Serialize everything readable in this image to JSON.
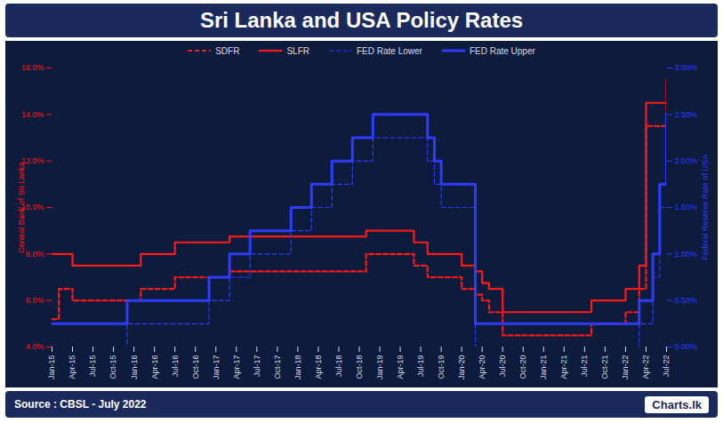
{
  "chart_data": {
    "type": "line",
    "title": "Sri Lanka and USA Policy Rates",
    "ylabel": "Central Bank of Sri Lanka",
    "y2label": "Federal Reserve Rate of USA",
    "source": "Source : CBSL - July 2022",
    "logo": "Charts.lk",
    "grid": false,
    "categories": [
      "Jan-15",
      null,
      null,
      "Apr-15",
      null,
      null,
      "Jul-15",
      null,
      null,
      "Oct-15",
      null,
      null,
      "Jan-16",
      null,
      null,
      "Apr-16",
      null,
      null,
      "Jul-16",
      null,
      null,
      "Oct-16",
      null,
      null,
      "Jan-17",
      null,
      null,
      "Apr-17",
      null,
      null,
      "Jul-17",
      null,
      null,
      "Oct-17",
      null,
      null,
      "Jan-18",
      null,
      null,
      "Apr-18",
      null,
      null,
      "Jul-18",
      null,
      null,
      "Oct-18",
      null,
      null,
      "Jan-19",
      null,
      null,
      "Apr-19",
      null,
      null,
      "Jul-19",
      null,
      null,
      "Oct-19",
      null,
      null,
      "Jan-20",
      null,
      null,
      "Apr-20",
      null,
      null,
      "Jul-20",
      null,
      null,
      "Oct-20",
      null,
      null,
      "Jan-21",
      null,
      null,
      "Apr-21",
      null,
      null,
      "Jul-21",
      null,
      null,
      "Oct-21",
      null,
      null,
      "Jan-22",
      null,
      null,
      "Apr-22",
      null,
      null,
      "Jul-22"
    ],
    "ylim": [
      4,
      16
    ],
    "yticks": [
      {
        "value": 4,
        "label": "4.0%"
      },
      {
        "value": 6,
        "label": "6.0%"
      },
      {
        "value": 8,
        "label": "8.0%"
      },
      {
        "value": 10,
        "label": "10.0%"
      },
      {
        "value": 12,
        "label": "12.0%"
      },
      {
        "value": 14,
        "label": "14.0%"
      },
      {
        "value": 16,
        "label": "16.0%"
      }
    ],
    "y2lim": [
      0,
      3
    ],
    "y2ticks": [
      {
        "value": 0,
        "label": "0.00%"
      },
      {
        "value": 0.5,
        "label": "0.50%"
      },
      {
        "value": 1,
        "label": "1.00%"
      },
      {
        "value": 1.5,
        "label": "1.50%"
      },
      {
        "value": 2,
        "label": "2.00%"
      },
      {
        "value": 2.5,
        "label": "2.50%"
      },
      {
        "value": 3,
        "label": "3.00%"
      }
    ],
    "series": [
      {
        "name": "SDFR",
        "color": "#ff1a1a",
        "line_style": "dashed",
        "values": [
          5.2,
          6.5,
          6.5,
          6,
          6,
          6,
          6,
          6,
          6,
          6,
          6,
          6,
          6,
          6.5,
          6.5,
          6.5,
          6.5,
          6.5,
          7,
          7,
          7,
          7,
          7,
          7,
          7,
          7,
          7.25,
          7.25,
          7.25,
          7.25,
          7.25,
          7.25,
          7.25,
          7.25,
          7.25,
          7.25,
          7.25,
          7.25,
          7.25,
          7.25,
          7.25,
          7.25,
          7.25,
          7.25,
          7.25,
          7.25,
          8,
          8,
          8,
          8,
          8,
          8,
          8,
          7.5,
          7.5,
          7,
          7,
          7,
          7,
          7,
          6.5,
          6.5,
          6.25,
          6,
          5.5,
          5.5,
          4.5,
          4.5,
          4.5,
          4.5,
          4.5,
          4.5,
          4.5,
          4.5,
          4.5,
          4.5,
          4.5,
          4.5,
          4.5,
          5,
          5,
          5,
          5,
          5,
          5.5,
          5.5,
          6.5,
          13.5,
          13.5,
          13.5,
          14.5
        ]
      },
      {
        "name": "SLFR",
        "color": "#ff1a1a",
        "line_style": "solid",
        "values": [
          8,
          8,
          8,
          7.5,
          7.5,
          7.5,
          7.5,
          7.5,
          7.5,
          7.5,
          7.5,
          7.5,
          7.5,
          8,
          8,
          8,
          8,
          8,
          8.5,
          8.5,
          8.5,
          8.5,
          8.5,
          8.5,
          8.5,
          8.5,
          8.75,
          8.75,
          8.75,
          8.75,
          8.75,
          8.75,
          8.75,
          8.75,
          8.75,
          8.75,
          8.75,
          8.75,
          8.75,
          8.75,
          8.75,
          8.75,
          8.75,
          8.75,
          8.75,
          8.75,
          9,
          9,
          9,
          9,
          9,
          9,
          9,
          8.5,
          8.5,
          8,
          8,
          8,
          8,
          8,
          7.5,
          7.5,
          7.25,
          6.75,
          6.5,
          6.5,
          5.5,
          5.5,
          5.5,
          5.5,
          5.5,
          5.5,
          5.5,
          5.5,
          5.5,
          5.5,
          5.5,
          5.5,
          5.5,
          6,
          6,
          6,
          6,
          6,
          6.5,
          6.5,
          7.5,
          14.5,
          14.5,
          14.5,
          15.5
        ]
      },
      {
        "name": "FED Rate Lower",
        "color": "#2f3cff",
        "line_style": "dashed",
        "axis": "y2",
        "values": [
          0,
          0,
          0,
          0,
          0,
          0,
          0,
          0,
          0,
          0,
          0,
          0.25,
          0.25,
          0.25,
          0.25,
          0.25,
          0.25,
          0.25,
          0.25,
          0.25,
          0.25,
          0.25,
          0.25,
          0.5,
          0.5,
          0.5,
          0.75,
          0.75,
          0.75,
          1,
          1,
          1,
          1,
          1,
          1,
          1.25,
          1.25,
          1.25,
          1.5,
          1.5,
          1.5,
          1.75,
          1.75,
          1.75,
          2,
          2,
          2,
          2.25,
          2.25,
          2.25,
          2.25,
          2.25,
          2.25,
          2.25,
          2.25,
          2,
          1.75,
          1.5,
          1.5,
          1.5,
          1.5,
          1.5,
          0,
          0,
          0,
          0,
          0,
          0,
          0,
          0,
          0,
          0,
          0,
          0,
          0,
          0,
          0,
          0,
          0,
          0,
          0,
          0,
          0,
          0,
          0,
          0,
          0.25,
          0.25,
          0.75,
          1.5,
          2.25
        ]
      },
      {
        "name": "FED Rate Upper",
        "color": "#2f3cff",
        "line_style": "solid",
        "axis": "y2",
        "values": [
          0.25,
          0.25,
          0.25,
          0.25,
          0.25,
          0.25,
          0.25,
          0.25,
          0.25,
          0.25,
          0.25,
          0.5,
          0.5,
          0.5,
          0.5,
          0.5,
          0.5,
          0.5,
          0.5,
          0.5,
          0.5,
          0.5,
          0.5,
          0.75,
          0.75,
          0.75,
          1,
          1,
          1,
          1.25,
          1.25,
          1.25,
          1.25,
          1.25,
          1.25,
          1.5,
          1.5,
          1.5,
          1.75,
          1.75,
          1.75,
          2,
          2,
          2,
          2.25,
          2.25,
          2.25,
          2.5,
          2.5,
          2.5,
          2.5,
          2.5,
          2.5,
          2.5,
          2.5,
          2.25,
          2,
          1.75,
          1.75,
          1.75,
          1.75,
          1.75,
          0.25,
          0.25,
          0.25,
          0.25,
          0.25,
          0.25,
          0.25,
          0.25,
          0.25,
          0.25,
          0.25,
          0.25,
          0.25,
          0.25,
          0.25,
          0.25,
          0.25,
          0.25,
          0.25,
          0.25,
          0.25,
          0.25,
          0.25,
          0.25,
          0.5,
          0.5,
          1,
          1.75,
          2.5
        ]
      }
    ]
  }
}
